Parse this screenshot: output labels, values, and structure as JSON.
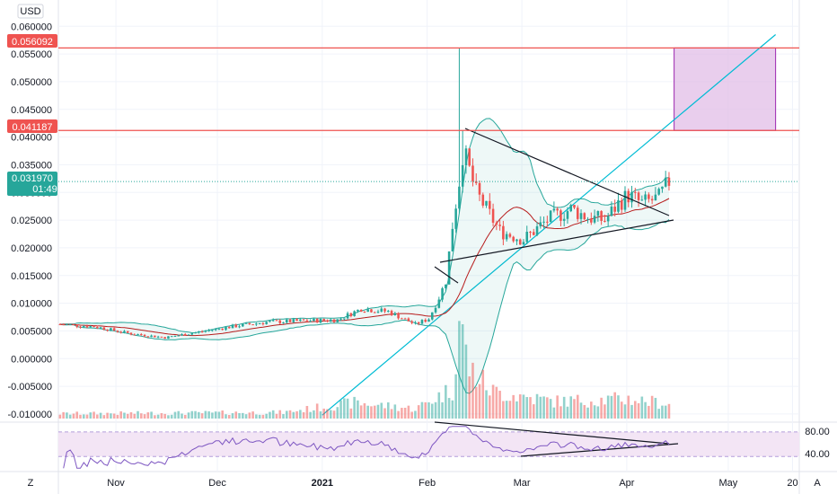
{
  "currency_label": "USD",
  "price_tags": {
    "upper": {
      "value": "0.056092",
      "color": "#ef5350"
    },
    "lower": {
      "value": "0.041187",
      "color": "#ef5350"
    },
    "last": {
      "value": "0.031970",
      "countdown": "01:49",
      "color": "#26a69a"
    }
  },
  "rsi_tags": [
    "80.00",
    "40.00"
  ],
  "bottom_bar": {
    "left_button": "Z",
    "right_button": "A"
  },
  "colors": {
    "up": "#26a69a",
    "down": "#ef5350",
    "band": "#26a69a",
    "basis": "#b71c1c",
    "rsi": "#7e57c2",
    "target_box": "#e1bee7",
    "target_box_border": "#9c27b0",
    "trend_line": "#00bcd4",
    "levels": "#ef5350"
  },
  "chart_data": {
    "type": "candlestick",
    "y_axis_ticks": [
      "0.060000",
      "0.055000",
      "0.050000",
      "0.045000",
      "0.040000",
      "0.035000",
      "0.030000",
      "0.025000",
      "0.020000",
      "0.015000",
      "0.010000",
      "0.005000",
      "0.000000",
      "-0.005000",
      "-0.010000"
    ],
    "ylim": [
      -0.0105,
      0.0615
    ],
    "x_axis_ticks": [
      "Nov",
      "Dec",
      "2021",
      "Feb",
      "Mar",
      "Apr",
      "May",
      "20"
    ],
    "xlim": [
      "2020-10-15",
      "2021-05-22"
    ],
    "tick_dates": [
      "2020-11-01",
      "2020-12-01",
      "2021-01-01",
      "2021-02-01",
      "2021-03-01",
      "2021-04-01",
      "2021-05-01",
      "2021-05-20"
    ],
    "levels": [
      0.056092,
      0.041187
    ],
    "last_price": 0.03197,
    "target_box": {
      "from": "2021-04-15",
      "to": "2021-05-15",
      "low": 0.041187,
      "high": 0.056092
    },
    "trend_line": {
      "from": [
        "2021-01-01",
        -0.0102
      ],
      "to": [
        "2021-05-15",
        0.0585
      ]
    },
    "close_anchors": [
      [
        "2020-10-15",
        0.0062
      ],
      [
        "2020-10-25",
        0.0058
      ],
      [
        "2020-11-05",
        0.0045
      ],
      [
        "2020-11-15",
        0.0038
      ],
      [
        "2020-11-25",
        0.0048
      ],
      [
        "2020-12-05",
        0.0058
      ],
      [
        "2020-12-15",
        0.0066
      ],
      [
        "2020-12-25",
        0.0068
      ],
      [
        "2021-01-05",
        0.007
      ],
      [
        "2021-01-12",
        0.009
      ],
      [
        "2021-01-20",
        0.0085
      ],
      [
        "2021-01-28",
        0.0062
      ],
      [
        "2021-02-01",
        0.0072
      ],
      [
        "2021-02-04",
        0.011
      ],
      [
        "2021-02-06",
        0.014
      ],
      [
        "2021-02-08",
        0.024
      ],
      [
        "2021-02-10",
        0.032
      ],
      [
        "2021-02-11",
        0.037
      ],
      [
        "2021-02-12",
        0.036
      ],
      [
        "2021-02-15",
        0.03
      ],
      [
        "2021-02-18",
        0.027
      ],
      [
        "2021-02-22",
        0.023
      ],
      [
        "2021-03-01",
        0.0215
      ],
      [
        "2021-03-08",
        0.025
      ],
      [
        "2021-03-15",
        0.027
      ],
      [
        "2021-03-20",
        0.0255
      ],
      [
        "2021-03-25",
        0.025
      ],
      [
        "2021-03-29",
        0.028
      ],
      [
        "2021-04-01",
        0.0295
      ],
      [
        "2021-04-05",
        0.028
      ],
      [
        "2021-04-10",
        0.029
      ],
      [
        "2021-04-13",
        0.032
      ]
    ],
    "volume_anchors": [
      [
        "2020-10-15",
        0.4
      ],
      [
        "2020-12-20",
        0.5
      ],
      [
        "2021-01-10",
        1.3
      ],
      [
        "2021-01-28",
        0.8
      ],
      [
        "2021-02-08",
        2.4
      ],
      [
        "2021-02-10",
        8.0
      ],
      [
        "2021-02-13",
        4.0
      ],
      [
        "2021-02-20",
        2.2
      ],
      [
        "2021-03-10",
        1.4
      ],
      [
        "2021-04-01",
        1.6
      ],
      [
        "2021-04-13",
        1.2
      ]
    ],
    "bollinger": {
      "period": 20,
      "mult": 2
    },
    "rsi": {
      "period": 14,
      "upper": 80,
      "lower": 40,
      "min": 20,
      "max": 90
    }
  }
}
